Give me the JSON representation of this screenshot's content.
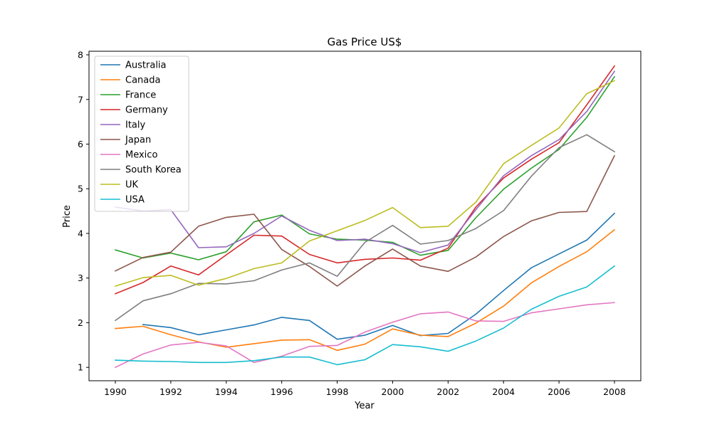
{
  "chart_data": {
    "type": "line",
    "title": "Gas Price US$",
    "xlabel": "Year",
    "ylabel": "Price",
    "xlim": [
      1989.05,
      2008.95
    ],
    "ylim": [
      0.7,
      8.08
    ],
    "xticks": [
      1990,
      1992,
      1994,
      1996,
      1998,
      2000,
      2002,
      2004,
      2006,
      2008
    ],
    "yticks": [
      1,
      2,
      3,
      4,
      5,
      6,
      7,
      8
    ],
    "grid": false,
    "legend_position": "top-left",
    "series": [
      {
        "name": "Australia",
        "color": "#1f77b4",
        "x": [
          1991,
          1992,
          1993,
          1994,
          1995,
          1996,
          1997,
          1998,
          1999,
          2000,
          2001,
          2002,
          2003,
          2004,
          2005,
          2006,
          2007,
          2008
        ],
        "values": [
          1.96,
          1.89,
          1.73,
          1.84,
          1.95,
          2.12,
          2.05,
          1.63,
          1.72,
          1.94,
          1.71,
          1.76,
          2.19,
          2.72,
          3.23,
          3.54,
          3.85,
          4.45
        ]
      },
      {
        "name": "Canada",
        "color": "#ff7f0e",
        "x": [
          1990,
          1991,
          1992,
          1993,
          1994,
          1995,
          1996,
          1997,
          1998,
          1999,
          2000,
          2001,
          2002,
          2003,
          2004,
          2005,
          2006,
          2007,
          2008
        ],
        "values": [
          1.87,
          1.92,
          1.73,
          1.57,
          1.45,
          1.53,
          1.61,
          1.62,
          1.38,
          1.52,
          1.86,
          1.72,
          1.69,
          1.99,
          2.37,
          2.89,
          3.26,
          3.59,
          4.08
        ]
      },
      {
        "name": "France",
        "color": "#2ca02c",
        "x": [
          1990,
          1991,
          1992,
          1993,
          1994,
          1995,
          1996,
          1997,
          1998,
          1999,
          2000,
          2001,
          2002,
          2003,
          2004,
          2005,
          2006,
          2007,
          2008
        ],
        "values": [
          3.63,
          3.45,
          3.56,
          3.41,
          3.59,
          4.26,
          4.41,
          3.99,
          3.87,
          3.85,
          3.8,
          3.51,
          3.62,
          4.35,
          4.99,
          5.46,
          5.88,
          6.6,
          7.51
        ]
      },
      {
        "name": "Germany",
        "color": "#d62728",
        "x": [
          1990,
          1991,
          1992,
          1993,
          1994,
          1995,
          1996,
          1997,
          1998,
          1999,
          2000,
          2001,
          2002,
          2003,
          2004,
          2005,
          2006,
          2007,
          2008
        ],
        "values": [
          2.65,
          2.9,
          3.27,
          3.07,
          3.52,
          3.96,
          3.94,
          3.53,
          3.34,
          3.42,
          3.45,
          3.4,
          3.67,
          4.59,
          5.24,
          5.66,
          6.03,
          6.88,
          7.75
        ]
      },
      {
        "name": "Italy",
        "color": "#9467bd",
        "x": [
          1990,
          1991,
          1992,
          1993,
          1994,
          1995,
          1996,
          1997,
          1998,
          1999,
          2000,
          2001,
          2002,
          2003,
          2004,
          2005,
          2006,
          2007,
          2008
        ],
        "values": [
          4.59,
          4.5,
          4.53,
          3.68,
          3.7,
          4.0,
          4.39,
          4.07,
          3.84,
          3.87,
          3.77,
          3.57,
          3.74,
          4.53,
          5.29,
          5.74,
          6.1,
          6.73,
          7.63
        ]
      },
      {
        "name": "Japan",
        "color": "#8c564b",
        "x": [
          1990,
          1991,
          1992,
          1993,
          1994,
          1995,
          1996,
          1997,
          1998,
          1999,
          2000,
          2001,
          2002,
          2003,
          2004,
          2005,
          2006,
          2007,
          2008
        ],
        "values": [
          3.16,
          3.46,
          3.58,
          4.16,
          4.36,
          4.43,
          3.64,
          3.26,
          2.82,
          3.27,
          3.65,
          3.27,
          3.15,
          3.47,
          3.93,
          4.28,
          4.47,
          4.49,
          5.74
        ]
      },
      {
        "name": "Mexico",
        "color": "#e377c2",
        "x": [
          1990,
          1991,
          1992,
          1993,
          1994,
          1995,
          1996,
          1997,
          1998,
          1999,
          2000,
          2001,
          2002,
          2003,
          2004,
          2005,
          2006,
          2007,
          2008
        ],
        "values": [
          1.0,
          1.3,
          1.5,
          1.56,
          1.48,
          1.11,
          1.25,
          1.47,
          1.49,
          1.79,
          2.01,
          2.2,
          2.24,
          2.04,
          2.03,
          2.22,
          2.31,
          2.4,
          2.45
        ]
      },
      {
        "name": "South Korea",
        "color": "#7f7f7f",
        "x": [
          1990,
          1991,
          1992,
          1993,
          1994,
          1995,
          1996,
          1997,
          1998,
          1999,
          2000,
          2001,
          2002,
          2003,
          2004,
          2005,
          2006,
          2007,
          2008
        ],
        "values": [
          2.05,
          2.49,
          2.65,
          2.88,
          2.87,
          2.94,
          3.18,
          3.34,
          3.04,
          3.8,
          4.18,
          3.76,
          3.84,
          4.11,
          4.51,
          5.28,
          5.92,
          6.21,
          5.83
        ]
      },
      {
        "name": "UK",
        "color": "#bcbd22",
        "x": [
          1990,
          1991,
          1992,
          1993,
          1994,
          1995,
          1996,
          1997,
          1998,
          1999,
          2000,
          2001,
          2002,
          2003,
          2004,
          2005,
          2006,
          2007,
          2008
        ],
        "values": [
          2.82,
          3.01,
          3.06,
          2.84,
          2.99,
          3.21,
          3.34,
          3.83,
          4.06,
          4.29,
          4.58,
          4.13,
          4.16,
          4.7,
          5.56,
          5.97,
          6.36,
          7.13,
          7.42
        ]
      },
      {
        "name": "USA",
        "color": "#17becf",
        "x": [
          1990,
          1991,
          1992,
          1993,
          1994,
          1995,
          1996,
          1997,
          1998,
          1999,
          2000,
          2001,
          2002,
          2003,
          2004,
          2005,
          2006,
          2007,
          2008
        ],
        "values": [
          1.16,
          1.14,
          1.13,
          1.11,
          1.11,
          1.15,
          1.23,
          1.23,
          1.06,
          1.17,
          1.51,
          1.46,
          1.36,
          1.59,
          1.88,
          2.3,
          2.59,
          2.8,
          3.27
        ]
      }
    ]
  }
}
